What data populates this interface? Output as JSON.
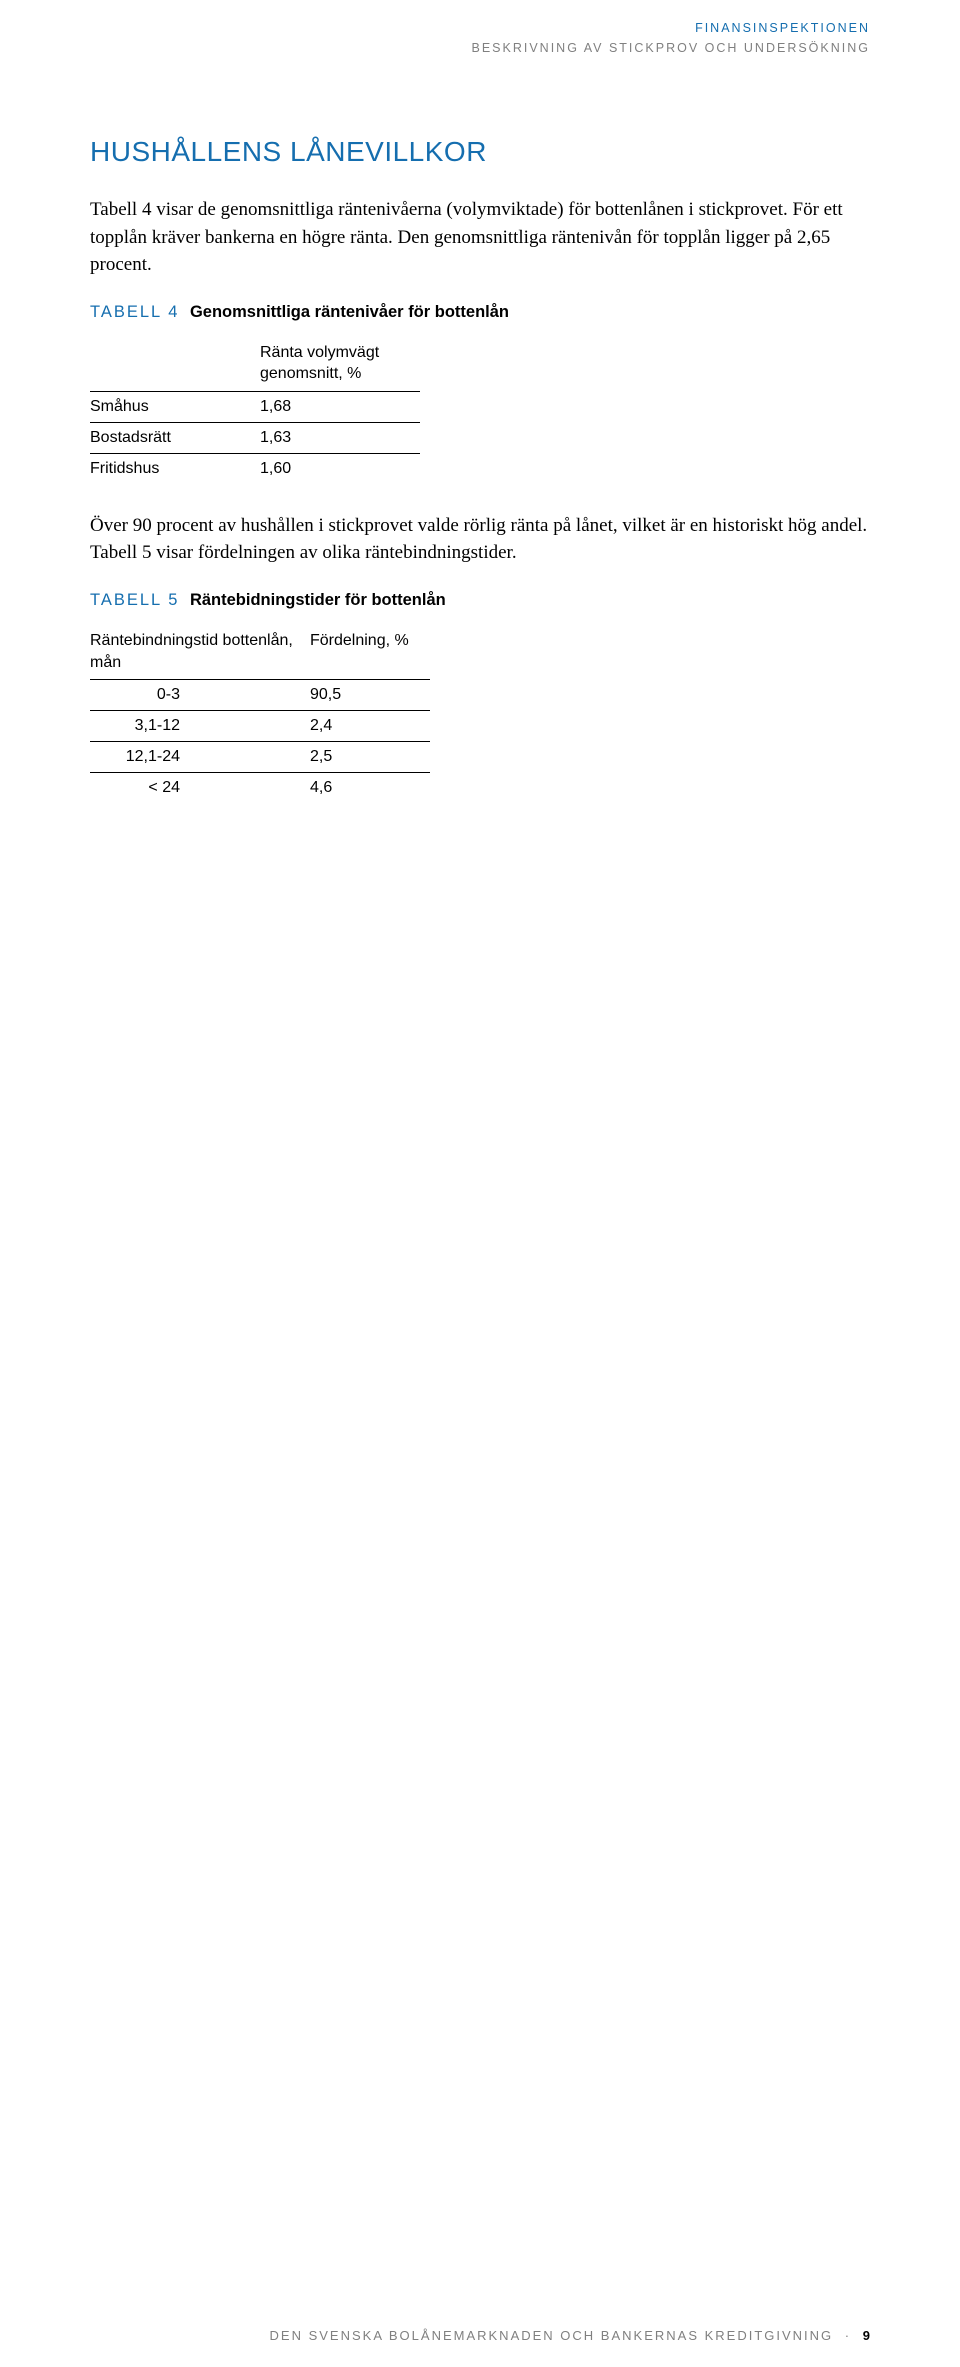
{
  "colors": {
    "brand_blue": "#156eaf",
    "header_gray": "#808080",
    "text": "#000000",
    "background": "#ffffff",
    "rule": "#000000"
  },
  "header": {
    "line1": "FINANSINSPEKTIONEN",
    "line2": "BESKRIVNING AV STICKPROV OCH UNDERSÖKNING"
  },
  "section": {
    "title": "HUSHÅLLENS LÅNEVILLKOR",
    "para1": "Tabell 4 visar de genomsnittliga räntenivåerna (volymviktade) för bottenlånen i stickprovet. För ett topplån kräver bankerna en högre ränta. Den genomsnittliga räntenivån för topplån ligger på 2,65 procent.",
    "para2": "Över 90 procent av hushållen i stickprovet valde rörlig ränta på lånet, vilket är en historiskt hög andel. Tabell 5 visar fördelningen av olika räntebindningstider."
  },
  "table4": {
    "lead": "TABELL 4",
    "title": "Genomsnittliga räntenivåer för bottenlån",
    "col_header": "Ränta volymvägt genomsnitt, %",
    "rows": [
      {
        "label": "Småhus",
        "value": "1,68"
      },
      {
        "label": "Bostadsrätt",
        "value": "1,63"
      },
      {
        "label": "Fritidshus",
        "value": "1,60"
      }
    ]
  },
  "table5": {
    "lead": "TABELL 5",
    "title": "Räntebidningstider för bottenlån",
    "col1_header": "Räntebindningstid bottenlån, mån",
    "col2_header": "Fördelning, %",
    "rows": [
      {
        "period": "0-3",
        "share": "90,5"
      },
      {
        "period": "3,1-12",
        "share": "2,4"
      },
      {
        "period": "12,1-24",
        "share": "2,5"
      },
      {
        "period": "< 24",
        "share": "4,6"
      }
    ]
  },
  "footer": {
    "text": "DEN SVENSKA BOLÅNEMARKNADEN OCH BANKERNAS KREDITGIVNING",
    "separator": "·",
    "page": "9"
  }
}
